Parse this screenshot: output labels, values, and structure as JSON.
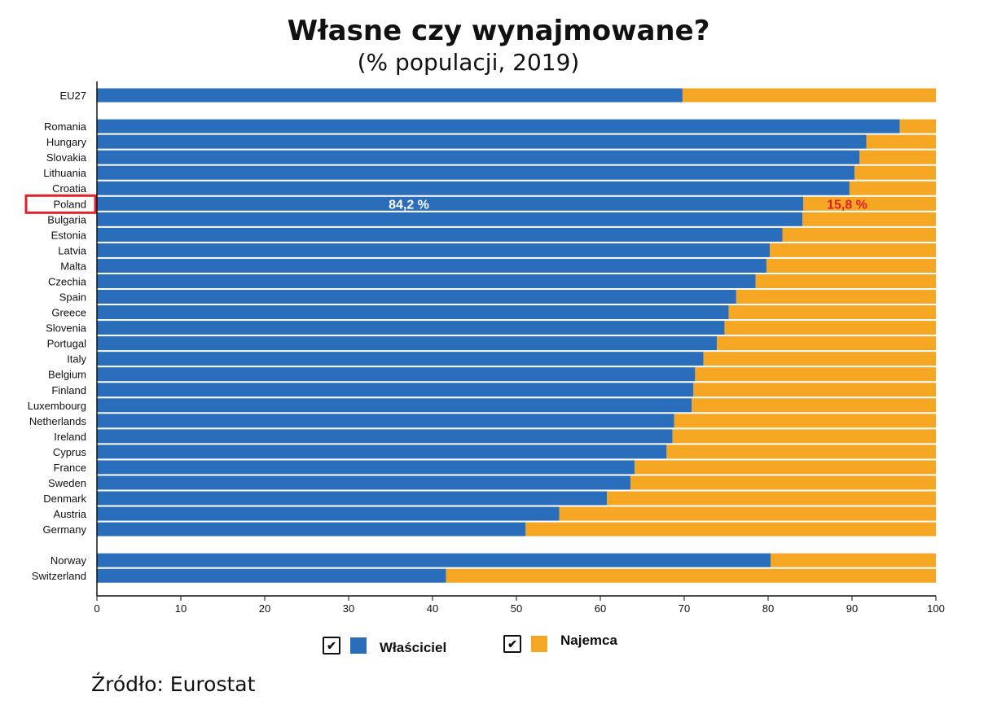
{
  "chart_data": {
    "type": "bar",
    "orientation": "horizontal",
    "stacked": true,
    "title": "Własne czy wynajmowane?",
    "subtitle": "(% populacji, 2019)",
    "xlim": [
      0,
      100
    ],
    "xticks": [
      0,
      10,
      20,
      30,
      40,
      50,
      60,
      70,
      80,
      90,
      100
    ],
    "grid": false,
    "legend_position": "bottom",
    "categories": [
      "EU27",
      "Romania",
      "Hungary",
      "Slovakia",
      "Lithuania",
      "Croatia",
      "Poland",
      "Bulgaria",
      "Estonia",
      "Latvia",
      "Malta",
      "Czechia",
      "Spain",
      "Greece",
      "Slovenia",
      "Portugal",
      "Italy",
      "Belgium",
      "Finland",
      "Luxembourg",
      "Netherlands",
      "Ireland",
      "Cyprus",
      "France",
      "Sweden",
      "Denmark",
      "Austria",
      "Germany",
      "Norway",
      "Switzerland"
    ],
    "groups": [
      0,
      1,
      1,
      1,
      1,
      1,
      1,
      1,
      1,
      1,
      1,
      1,
      1,
      1,
      1,
      1,
      1,
      1,
      1,
      1,
      1,
      1,
      1,
      1,
      1,
      1,
      1,
      1,
      2,
      2
    ],
    "series": [
      {
        "name": "Właściciel",
        "color": "#2a6ebb",
        "values": [
          69.8,
          95.7,
          91.7,
          90.9,
          90.3,
          89.7,
          84.2,
          84.1,
          81.7,
          80.2,
          79.8,
          78.5,
          76.2,
          75.3,
          74.8,
          73.9,
          72.3,
          71.3,
          71.1,
          70.9,
          68.8,
          68.6,
          67.9,
          64.1,
          63.6,
          60.8,
          55.1,
          51.1,
          80.3,
          41.6
        ]
      },
      {
        "name": "Najemca",
        "color": "#f5a623",
        "values": [
          30.2,
          4.3,
          8.3,
          9.1,
          9.7,
          10.3,
          15.8,
          15.9,
          18.3,
          19.8,
          20.2,
          21.5,
          23.8,
          24.7,
          25.2,
          26.1,
          27.7,
          28.7,
          28.9,
          29.1,
          31.2,
          31.4,
          32.1,
          35.9,
          36.4,
          39.2,
          44.9,
          48.9,
          19.7,
          58.4
        ]
      }
    ],
    "annotations": {
      "highlight_category": "Poland",
      "highlight_color": "#e0202a",
      "owner_label": "84,2 %",
      "owner_label_color": "#ffffff",
      "tenant_label": "15,8 %",
      "tenant_label_color": "#e0202a"
    }
  },
  "legend": {
    "owner": "Właściciel",
    "tenant": "Najemca",
    "checked": true
  },
  "source": "Źródło: Eurostat"
}
